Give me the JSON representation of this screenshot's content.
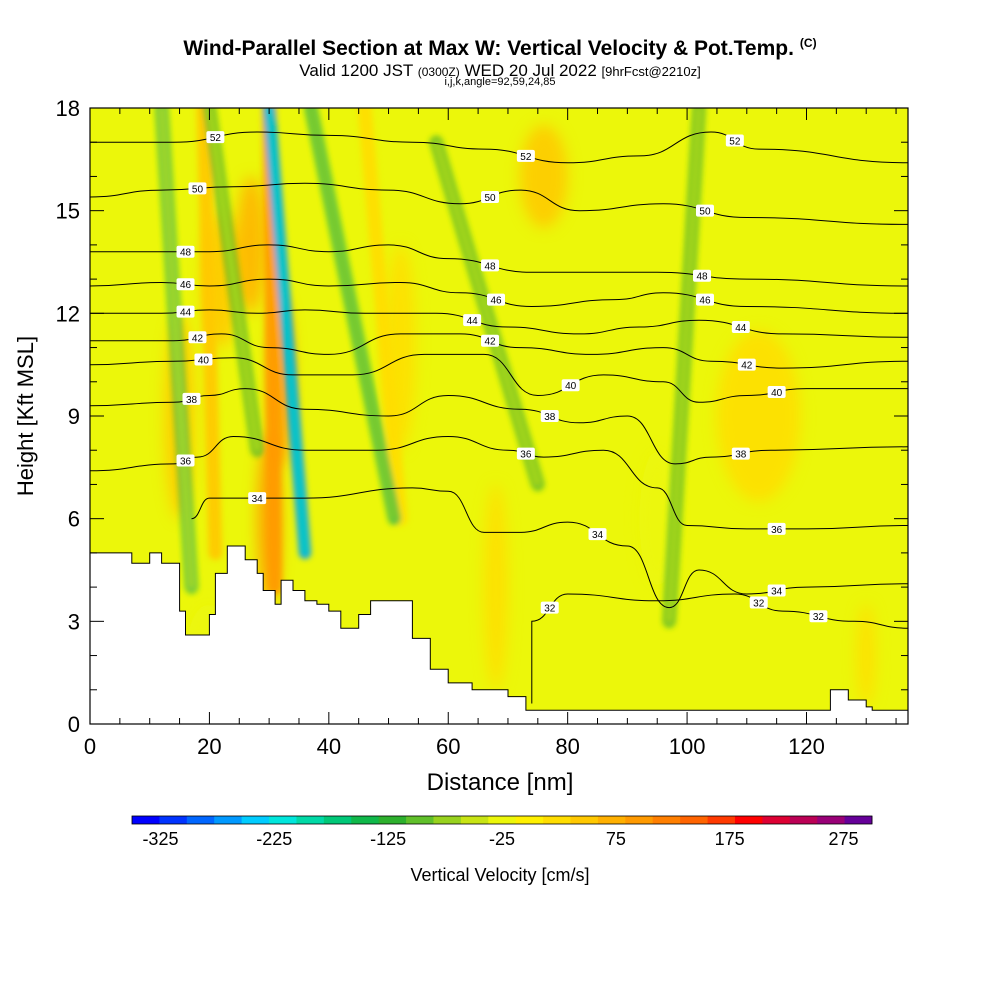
{
  "chart_data": {
    "type": "heatmap",
    "title": "Wind-Parallel Section at Max W: Vertical Velocity & Pot.Temp.",
    "title_mark": "(C)",
    "valid": {
      "main_pre": "Valid 1200 JST ",
      "utc": "(0300Z)",
      "main_post": " WED 20 Jul 2022 ",
      "fcst": "[9hrFcst@2210z]"
    },
    "subtitle": "i,j,k,angle=92,59,24,85",
    "xlabel": "Distance [nm]",
    "ylabel": "Height [Kft MSL]",
    "xlim": [
      0,
      137
    ],
    "ylim": [
      0,
      18
    ],
    "x_ticks": [
      "0",
      "20",
      "40",
      "60",
      "80",
      "100",
      "120"
    ],
    "x_tick_values": [
      0,
      20,
      40,
      60,
      80,
      100,
      120
    ],
    "y_ticks": [
      "0",
      "3",
      "6",
      "9",
      "12",
      "15",
      "18"
    ],
    "y_tick_values": [
      0,
      3,
      6,
      9,
      12,
      15,
      18
    ],
    "colorbar": {
      "label": "Vertical Velocity [cm/s]",
      "min": -350,
      "max": 300,
      "step": 25,
      "tick_labels": [
        "-325",
        "-225",
        "-125",
        "-25",
        "75",
        "175",
        "275"
      ],
      "tick_values": [
        -325,
        -225,
        -125,
        -25,
        75,
        175,
        275
      ],
      "colors": [
        "#0000ff",
        "#0033ff",
        "#0066ff",
        "#0099ff",
        "#00ccff",
        "#00e6dc",
        "#00d9a6",
        "#00c878",
        "#10b84a",
        "#2db02d",
        "#60c02a",
        "#98d21e",
        "#c8e414",
        "#ecf70a",
        "#fff000",
        "#ffdd00",
        "#ffc800",
        "#ffb000",
        "#ff9a00",
        "#ff7f00",
        "#ff6400",
        "#ff3a00",
        "#ff0000",
        "#dd0033",
        "#bb0055",
        "#990077",
        "#660099"
      ]
    },
    "vertical_velocity_cells": {
      "background": "#ecf70a",
      "features": [
        {
          "x": 15,
          "y": 9,
          "width": 5,
          "height": 6,
          "w": 60
        },
        {
          "x": 27,
          "y": 14,
          "width": 5,
          "height": 4,
          "w": 90
        },
        {
          "x": 32,
          "y": 10,
          "width": 4,
          "height": 5,
          "w": 120
        },
        {
          "x": 30,
          "y": 6,
          "width": 4,
          "height": 5,
          "w": 110
        },
        {
          "x": 22,
          "y": 13,
          "width": 6,
          "height": 4,
          "w": 50
        },
        {
          "x": 52,
          "y": 11,
          "width": 5,
          "height": 6,
          "w": 45
        },
        {
          "x": 68,
          "y": 4,
          "width": 4,
          "height": 6,
          "w": 35
        },
        {
          "x": 76,
          "y": 16,
          "width": 8,
          "height": 3,
          "w": 50
        },
        {
          "x": 112,
          "y": 9,
          "width": 14,
          "height": 5,
          "w": 25
        },
        {
          "x": 130,
          "y": 2,
          "width": 3,
          "height": 3,
          "w": 40
        },
        {
          "x": 20,
          "y": 2,
          "width": 8,
          "height": 3,
          "w": -20
        },
        {
          "x": 95,
          "y": 6,
          "width": 6,
          "height": 4,
          "w": -25
        }
      ],
      "updraft_bands": [
        {
          "top": [
            19,
            18
          ],
          "bottom": [
            21,
            5
          ],
          "w": 55
        },
        {
          "top": [
            30,
            18
          ],
          "bottom": [
            31,
            4
          ],
          "w": 120
        },
        {
          "top": [
            46,
            18
          ],
          "bottom": [
            52,
            6
          ],
          "w": 45
        }
      ],
      "downdraft_bands": [
        {
          "top": [
            12,
            18
          ],
          "bottom": [
            17,
            4
          ],
          "w": -130
        },
        {
          "top": [
            20,
            18
          ],
          "bottom": [
            28,
            8
          ],
          "w": -120
        },
        {
          "top": [
            30,
            18
          ],
          "bottom": [
            36,
            5
          ],
          "w": -260
        },
        {
          "top": [
            37,
            18
          ],
          "bottom": [
            51,
            6
          ],
          "w": -140
        },
        {
          "top": [
            58,
            17
          ],
          "bottom": [
            75,
            7
          ],
          "w": -110
        },
        {
          "top": [
            102,
            18
          ],
          "bottom": [
            97,
            3
          ],
          "w": -120
        }
      ]
    },
    "potential_temperature_contours": [
      {
        "label": "32",
        "points": [
          [
            74,
            0.6
          ],
          [
            74,
            3.0
          ],
          [
            80,
            3.8
          ],
          [
            95,
            3.6
          ],
          [
            108,
            3.8
          ],
          [
            116,
            3.3
          ],
          [
            128,
            3.0
          ],
          [
            137,
            2.8
          ]
        ]
      },
      {
        "label": "34",
        "points": [
          [
            17,
            6.0
          ],
          [
            20,
            6.6
          ],
          [
            36,
            6.6
          ],
          [
            54,
            6.9
          ],
          [
            60,
            6.8
          ],
          [
            66,
            5.6
          ],
          [
            72,
            5.6
          ],
          [
            80,
            5.9
          ],
          [
            90,
            5.2
          ],
          [
            97,
            3.4
          ],
          [
            102,
            4.5
          ],
          [
            110,
            3.8
          ],
          [
            120,
            4.0
          ],
          [
            137,
            4.1
          ]
        ]
      },
      {
        "label": "36",
        "points": [
          [
            0,
            7.4
          ],
          [
            14,
            7.6
          ],
          [
            18,
            7.8
          ],
          [
            24,
            8.4
          ],
          [
            36,
            8.0
          ],
          [
            48,
            8.0
          ],
          [
            60,
            8.4
          ],
          [
            70,
            8.0
          ],
          [
            76,
            7.8
          ],
          [
            86,
            8.0
          ],
          [
            95,
            6.9
          ],
          [
            100,
            5.8
          ],
          [
            110,
            5.7
          ],
          [
            120,
            5.7
          ],
          [
            137,
            5.8
          ]
        ]
      },
      {
        "label": "38",
        "points": [
          [
            0,
            9.3
          ],
          [
            14,
            9.4
          ],
          [
            20,
            9.6
          ],
          [
            26,
            9.8
          ],
          [
            36,
            9.2
          ],
          [
            50,
            9.0
          ],
          [
            60,
            9.6
          ],
          [
            72,
            9.2
          ],
          [
            82,
            8.8
          ],
          [
            90,
            9.0
          ],
          [
            98,
            7.6
          ],
          [
            104,
            7.8
          ],
          [
            114,
            8.0
          ],
          [
            137,
            8.1
          ]
        ]
      },
      {
        "label": "40",
        "points": [
          [
            0,
            10.5
          ],
          [
            14,
            10.6
          ],
          [
            24,
            10.7
          ],
          [
            34,
            10.2
          ],
          [
            44,
            10.2
          ],
          [
            56,
            10.8
          ],
          [
            66,
            10.8
          ],
          [
            75,
            9.6
          ],
          [
            86,
            10.2
          ],
          [
            96,
            10.0
          ],
          [
            102,
            9.4
          ],
          [
            110,
            9.6
          ],
          [
            120,
            9.8
          ],
          [
            137,
            9.8
          ]
        ]
      },
      {
        "label": "42",
        "points": [
          [
            0,
            11.2
          ],
          [
            14,
            11.2
          ],
          [
            22,
            11.4
          ],
          [
            30,
            11.0
          ],
          [
            40,
            10.8
          ],
          [
            52,
            11.4
          ],
          [
            62,
            11.4
          ],
          [
            72,
            11.0
          ],
          [
            84,
            10.8
          ],
          [
            96,
            11.0
          ],
          [
            104,
            10.6
          ],
          [
            116,
            10.4
          ],
          [
            137,
            10.6
          ]
        ]
      },
      {
        "label": "44",
        "points": [
          [
            0,
            12.0
          ],
          [
            12,
            12.0
          ],
          [
            20,
            12.1
          ],
          [
            28,
            12.0
          ],
          [
            36,
            12.1
          ],
          [
            46,
            12.0
          ],
          [
            58,
            12.0
          ],
          [
            70,
            11.6
          ],
          [
            82,
            11.4
          ],
          [
            92,
            11.6
          ],
          [
            102,
            11.8
          ],
          [
            116,
            11.4
          ],
          [
            137,
            11.3
          ]
        ]
      },
      {
        "label": "46",
        "points": [
          [
            0,
            12.8
          ],
          [
            12,
            12.9
          ],
          [
            20,
            12.8
          ],
          [
            30,
            13.0
          ],
          [
            40,
            12.8
          ],
          [
            52,
            12.9
          ],
          [
            62,
            12.6
          ],
          [
            74,
            12.2
          ],
          [
            88,
            12.4
          ],
          [
            96,
            12.6
          ],
          [
            110,
            12.2
          ],
          [
            137,
            12.0
          ]
        ]
      },
      {
        "label": "48",
        "points": [
          [
            0,
            13.8
          ],
          [
            12,
            13.8
          ],
          [
            20,
            13.8
          ],
          [
            30,
            14.0
          ],
          [
            40,
            13.8
          ],
          [
            50,
            14.0
          ],
          [
            60,
            13.6
          ],
          [
            74,
            13.2
          ],
          [
            86,
            13.2
          ],
          [
            95,
            13.2
          ],
          [
            110,
            13.0
          ],
          [
            137,
            12.8
          ]
        ]
      },
      {
        "label": "50",
        "points": [
          [
            0,
            15.4
          ],
          [
            12,
            15.6
          ],
          [
            24,
            15.7
          ],
          [
            36,
            15.8
          ],
          [
            50,
            15.6
          ],
          [
            62,
            15.2
          ],
          [
            72,
            15.6
          ],
          [
            82,
            15.0
          ],
          [
            96,
            15.2
          ],
          [
            110,
            14.8
          ],
          [
            137,
            14.6
          ]
        ]
      },
      {
        "label": "52",
        "points": [
          [
            0,
            17.0
          ],
          [
            14,
            17.0
          ],
          [
            28,
            17.3
          ],
          [
            40,
            17.2
          ],
          [
            54,
            17.0
          ],
          [
            66,
            16.8
          ],
          [
            80,
            16.4
          ],
          [
            92,
            16.6
          ],
          [
            104,
            17.3
          ],
          [
            112,
            16.8
          ],
          [
            137,
            16.4
          ]
        ]
      }
    ],
    "terrain_profile": [
      [
        0,
        5.0
      ],
      [
        6,
        5.0
      ],
      [
        7,
        4.7
      ],
      [
        10,
        4.7
      ],
      [
        10,
        5.0
      ],
      [
        12,
        5.0
      ],
      [
        12,
        4.7
      ],
      [
        14,
        4.7
      ],
      [
        15,
        3.3
      ],
      [
        16,
        2.6
      ],
      [
        19,
        2.6
      ],
      [
        20,
        3.2
      ],
      [
        21,
        4.4
      ],
      [
        23,
        5.2
      ],
      [
        25,
        5.2
      ],
      [
        26,
        4.8
      ],
      [
        28,
        4.4
      ],
      [
        29,
        3.9
      ],
      [
        31,
        3.5
      ],
      [
        32,
        4.2
      ],
      [
        34,
        3.9
      ],
      [
        36,
        3.6
      ],
      [
        38,
        3.5
      ],
      [
        40,
        3.3
      ],
      [
        42,
        2.8
      ],
      [
        44,
        2.8
      ],
      [
        45,
        3.2
      ],
      [
        47,
        3.6
      ],
      [
        52,
        3.6
      ],
      [
        54,
        2.5
      ],
      [
        57,
        1.6
      ],
      [
        60,
        1.2
      ],
      [
        64,
        1.0
      ],
      [
        70,
        0.8
      ],
      [
        73,
        0.4
      ],
      [
        122,
        0.4
      ],
      [
        124,
        1.0
      ],
      [
        126,
        1.0
      ],
      [
        127,
        0.7
      ],
      [
        130,
        0.5
      ],
      [
        131,
        0.4
      ],
      [
        137,
        0.4
      ]
    ]
  }
}
